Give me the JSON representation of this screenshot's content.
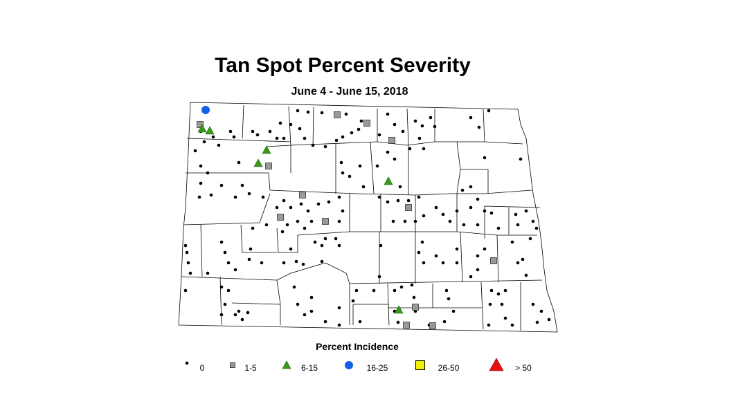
{
  "header": {
    "title": "Tan Spot Percent Severity",
    "subtitle": "June 4 - June 15, 2018"
  },
  "legend": {
    "title": "Percent Incidence",
    "items": [
      {
        "label": "0"
      },
      {
        "label": "1-5"
      },
      {
        "label": "6-15"
      },
      {
        "label": "16-25"
      },
      {
        "label": "26-50"
      },
      {
        "label": "> 50"
      }
    ]
  }
}
